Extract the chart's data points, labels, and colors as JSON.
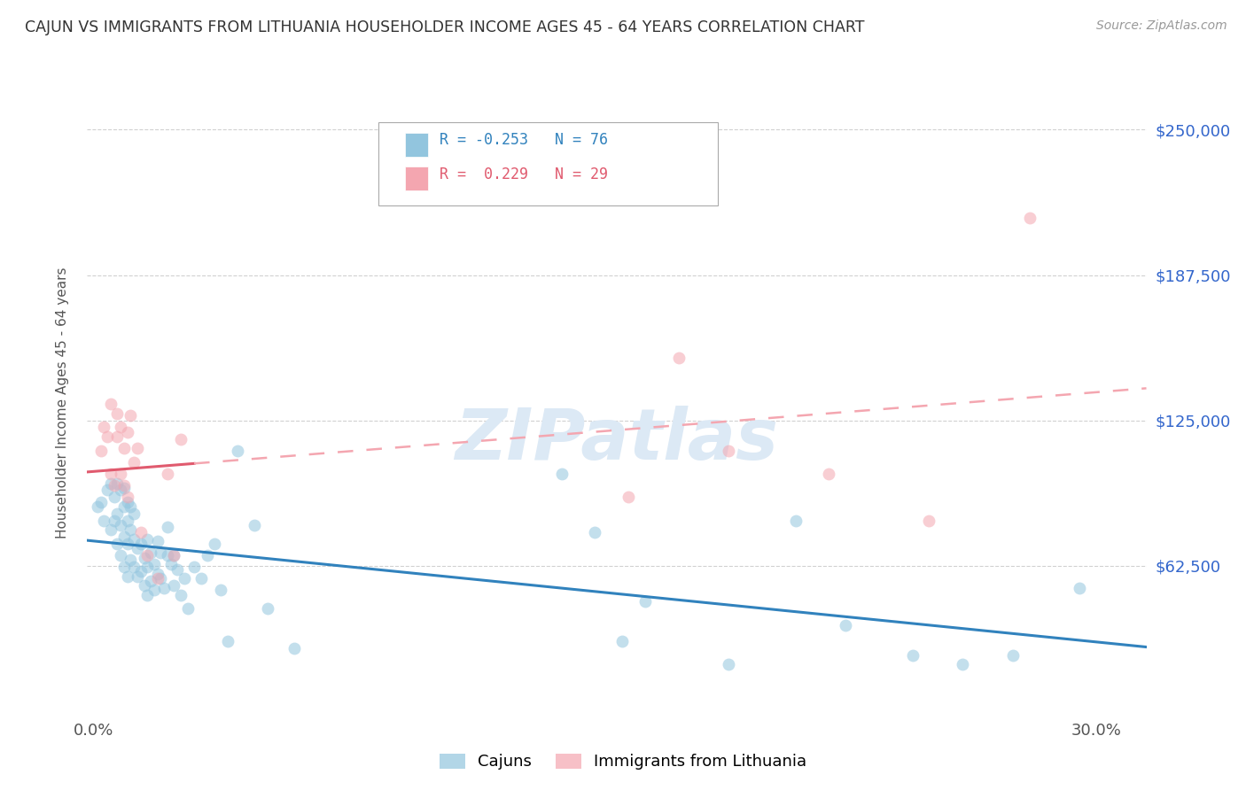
{
  "title": "CAJUN VS IMMIGRANTS FROM LITHUANIA HOUSEHOLDER INCOME AGES 45 - 64 YEARS CORRELATION CHART",
  "source": "Source: ZipAtlas.com",
  "ylabel": "Householder Income Ages 45 - 64 years",
  "y_tick_labels": [
    "$62,500",
    "$125,000",
    "$187,500",
    "$250,000"
  ],
  "y_tick_values": [
    62500,
    125000,
    187500,
    250000
  ],
  "y_min": 0,
  "y_max": 265000,
  "x_min": -0.002,
  "x_max": 0.315,
  "cajun_color": "#92c5de",
  "lith_color": "#f4a6b0",
  "cajun_line_color": "#3182bd",
  "lith_line_color": "#e05a6e",
  "lith_dashed_color": "#f4a6b0",
  "watermark": "ZIPatlas",
  "watermark_color": "#dce9f5",
  "background_color": "#ffffff",
  "grid_color": "#cccccc",
  "title_color": "#333333",
  "source_color": "#999999",
  "axis_label_color": "#555555",
  "right_tick_color": "#3366cc",
  "legend_r1": "R = -0.253",
  "legend_n1": "N = 76",
  "legend_r2": "R =  0.229",
  "legend_n2": "N = 29",
  "cajun_x": [
    0.001,
    0.002,
    0.003,
    0.004,
    0.005,
    0.005,
    0.006,
    0.006,
    0.007,
    0.007,
    0.007,
    0.008,
    0.008,
    0.008,
    0.009,
    0.009,
    0.009,
    0.009,
    0.01,
    0.01,
    0.01,
    0.01,
    0.011,
    0.011,
    0.011,
    0.012,
    0.012,
    0.012,
    0.013,
    0.013,
    0.014,
    0.014,
    0.015,
    0.015,
    0.016,
    0.016,
    0.016,
    0.017,
    0.017,
    0.018,
    0.018,
    0.019,
    0.019,
    0.02,
    0.02,
    0.021,
    0.022,
    0.022,
    0.023,
    0.024,
    0.024,
    0.025,
    0.026,
    0.027,
    0.028,
    0.03,
    0.032,
    0.034,
    0.036,
    0.038,
    0.04,
    0.043,
    0.048,
    0.052,
    0.06,
    0.14,
    0.15,
    0.158,
    0.165,
    0.19,
    0.21,
    0.225,
    0.245,
    0.26,
    0.275,
    0.295
  ],
  "cajun_y": [
    88000,
    90000,
    82000,
    95000,
    78000,
    98000,
    82000,
    92000,
    72000,
    85000,
    98000,
    67000,
    80000,
    95000,
    62000,
    75000,
    88000,
    96000,
    58000,
    72000,
    82000,
    90000,
    65000,
    78000,
    88000,
    62000,
    74000,
    85000,
    58000,
    70000,
    60000,
    72000,
    54000,
    66000,
    50000,
    62000,
    74000,
    56000,
    68000,
    52000,
    63000,
    59000,
    73000,
    57000,
    68000,
    53000,
    67000,
    79000,
    63000,
    54000,
    67000,
    61000,
    50000,
    57000,
    44000,
    62000,
    57000,
    67000,
    72000,
    52000,
    30000,
    112000,
    80000,
    44000,
    27000,
    102000,
    77000,
    30000,
    47000,
    20000,
    82000,
    37000,
    24000,
    20000,
    24000,
    53000
  ],
  "lith_x": [
    0.002,
    0.003,
    0.004,
    0.005,
    0.005,
    0.006,
    0.007,
    0.007,
    0.008,
    0.008,
    0.009,
    0.009,
    0.01,
    0.01,
    0.011,
    0.012,
    0.013,
    0.014,
    0.016,
    0.019,
    0.022,
    0.024,
    0.026,
    0.16,
    0.175,
    0.19,
    0.22,
    0.25,
    0.28
  ],
  "lith_y": [
    112000,
    122000,
    118000,
    102000,
    132000,
    97000,
    118000,
    128000,
    102000,
    122000,
    97000,
    113000,
    120000,
    92000,
    127000,
    107000,
    113000,
    77000,
    67000,
    57000,
    102000,
    67000,
    117000,
    92000,
    152000,
    112000,
    102000,
    82000,
    212000
  ]
}
